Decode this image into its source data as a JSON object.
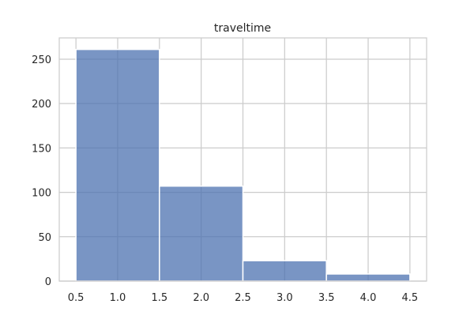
{
  "chart_data": {
    "type": "bar",
    "title": "traveltime",
    "xlabel": "",
    "ylabel": "",
    "bins": [
      {
        "x0": 0.5,
        "x1": 1.5,
        "count": 261
      },
      {
        "x0": 1.5,
        "x1": 2.5,
        "count": 107
      },
      {
        "x0": 2.5,
        "x1": 3.5,
        "count": 23
      },
      {
        "x0": 3.5,
        "x1": 4.5,
        "count": 8
      }
    ],
    "xlim": [
      0.3,
      4.7
    ],
    "ylim": [
      0,
      274
    ],
    "xticks": [
      "0.5",
      "1.0",
      "1.5",
      "2.0",
      "2.5",
      "3.0",
      "3.5",
      "4.0",
      "4.5"
    ],
    "yticks": [
      "0",
      "50",
      "100",
      "150",
      "200",
      "250"
    ],
    "grid": true,
    "bar_color": "#4c72b0"
  }
}
